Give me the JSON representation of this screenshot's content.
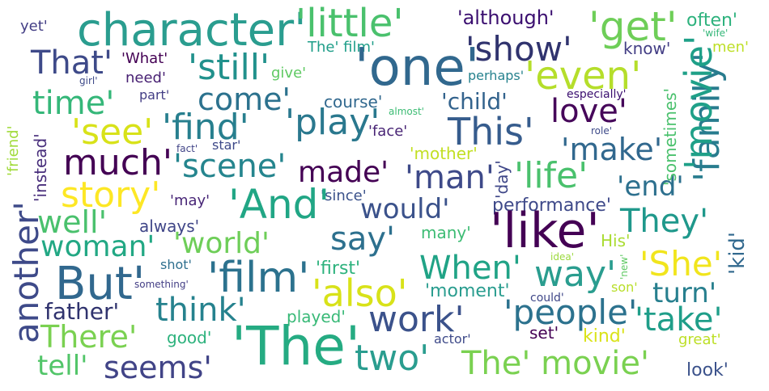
{
  "words": [
    {
      "text": "character'",
      "color": "#2a9d8f"
    },
    {
      "text": "'little'",
      "color": "#4ac16d"
    },
    {
      "text": "'although'",
      "color": "#3b0f70"
    },
    {
      "text": "'get'",
      "color": "#6ece58"
    },
    {
      "text": "often'",
      "color": "#2db27d"
    },
    {
      "text": "yet'",
      "color": "#433e85"
    },
    {
      "text": "The' film'",
      "color": "#1f9e89"
    },
    {
      "text": "'wife'",
      "color": "#35b779"
    },
    {
      "text": "That'",
      "color": "#3e4a89"
    },
    {
      "text": "'What'",
      "color": "#440154"
    },
    {
      "text": "'still'",
      "color": "#21918c"
    },
    {
      "text": "'one'",
      "color": "#31688e"
    },
    {
      "text": "'show'",
      "color": "#30336e"
    },
    {
      "text": "know'",
      "color": "#433e85"
    },
    {
      "text": "men'",
      "color": "#bddf26"
    },
    {
      "text": "need'",
      "color": "#482173"
    },
    {
      "text": "give'",
      "color": "#5ec962"
    },
    {
      "text": "perhaps'",
      "color": "#26828e"
    },
    {
      "text": "'even'",
      "color": "#b5de2b"
    },
    {
      "text": "girl'",
      "color": "#3e4a89"
    },
    {
      "text": "time'",
      "color": "#35b779"
    },
    {
      "text": "part'",
      "color": "#433e85"
    },
    {
      "text": "come'",
      "color": "#2c728e"
    },
    {
      "text": "course'",
      "color": "#31688e"
    },
    {
      "text": "'child'",
      "color": "#33638d"
    },
    {
      "text": "especially'",
      "color": "#3b0f70"
    },
    {
      "text": "almost'",
      "color": "#3dbc74"
    },
    {
      "text": "love'",
      "color": "#46075a"
    },
    {
      "text": "'family'",
      "color": "#287c8e"
    },
    {
      "text": "'movie'",
      "color": "#1fa088"
    },
    {
      "text": "'see'",
      "color": "#d8e219"
    },
    {
      "text": "'find'",
      "color": "#277f8e"
    },
    {
      "text": "'play'",
      "color": "#2a788e"
    },
    {
      "text": "'face'",
      "color": "#482475"
    },
    {
      "text": "This'",
      "color": "#365c8d"
    },
    {
      "text": "role'",
      "color": "#3e4a89"
    },
    {
      "text": "'make'",
      "color": "#31688e"
    },
    {
      "text": "'friend'",
      "color": "#a0da39"
    },
    {
      "text": "'instead'",
      "color": "#472d7b"
    },
    {
      "text": "fact'",
      "color": "#414487"
    },
    {
      "text": "star'",
      "color": "#3e4989"
    },
    {
      "text": "much'",
      "color": "#440154"
    },
    {
      "text": "'scene'",
      "color": "#25858e"
    },
    {
      "text": "'mother'",
      "color": "#c2df23"
    },
    {
      "text": "'sometimes'",
      "color": "#4ac16d"
    },
    {
      "text": "made'",
      "color": "#440154"
    },
    {
      "text": "'man'",
      "color": "#3e4a89"
    },
    {
      "text": "'life'",
      "color": "#4ac16d"
    },
    {
      "text": "'day'",
      "color": "#3f4788"
    },
    {
      "text": "'end'",
      "color": "#2d708e"
    },
    {
      "text": "story'",
      "color": "#fde725"
    },
    {
      "text": "'since'",
      "color": "#3b528b"
    },
    {
      "text": "'may'",
      "color": "#482677"
    },
    {
      "text": "'And'",
      "color": "#21a685"
    },
    {
      "text": "would'",
      "color": "#3b528b"
    },
    {
      "text": "performance'",
      "color": "#3e4989"
    },
    {
      "text": "another'",
      "color": "#3e4a89"
    },
    {
      "text": "well'",
      "color": "#4ac16d"
    },
    {
      "text": "always'",
      "color": "#404688"
    },
    {
      "text": "'like'",
      "color": "#440154"
    },
    {
      "text": "They'",
      "color": "#1f988b"
    },
    {
      "text": "'kid'",
      "color": "#31688e"
    },
    {
      "text": "woman'",
      "color": "#22a884"
    },
    {
      "text": "'world'",
      "color": "#6ece58"
    },
    {
      "text": "say'",
      "color": "#2d708e"
    },
    {
      "text": "many'",
      "color": "#3dbc74"
    },
    {
      "text": "His'",
      "color": "#aadc32"
    },
    {
      "text": "idea'",
      "color": "#9bd93c"
    },
    {
      "text": "'new'",
      "color": "#5ec962"
    },
    {
      "text": "'She'",
      "color": "#f1e51d"
    },
    {
      "text": "shot'",
      "color": "#2e6f8e"
    },
    {
      "text": "'first'",
      "color": "#2db27d"
    },
    {
      "text": "But'",
      "color": "#31688e"
    },
    {
      "text": "'film'",
      "color": "#2c728e"
    },
    {
      "text": "When'",
      "color": "#20a386"
    },
    {
      "text": "way'",
      "color": "#2a9d8f"
    },
    {
      "text": "something'",
      "color": "#433e85"
    },
    {
      "text": "'also'",
      "color": "#d8e219"
    },
    {
      "text": "'moment'",
      "color": "#2a9d8f"
    },
    {
      "text": "son'",
      "color": "#b8de29"
    },
    {
      "text": "could'",
      "color": "#3f4788"
    },
    {
      "text": "turn'",
      "color": "#277f8e"
    },
    {
      "text": "father'",
      "color": "#30336e"
    },
    {
      "text": "think'",
      "color": "#26828e"
    },
    {
      "text": "'people'",
      "color": "#2c728e"
    },
    {
      "text": "played'",
      "color": "#38b977"
    },
    {
      "text": "work'",
      "color": "#3b528b"
    },
    {
      "text": "'take'",
      "color": "#1f9e89"
    },
    {
      "text": "There'",
      "color": "#7ad151"
    },
    {
      "text": "good'",
      "color": "#2db27d"
    },
    {
      "text": "'The'",
      "color": "#25ab82"
    },
    {
      "text": "actor'",
      "color": "#3e4a89"
    },
    {
      "text": "set'",
      "color": "#440154"
    },
    {
      "text": "kind'",
      "color": "#dae319"
    },
    {
      "text": "great'",
      "color": "#bddf26"
    },
    {
      "text": "tell'",
      "color": "#52c569"
    },
    {
      "text": "seems'",
      "color": "#414487"
    },
    {
      "text": "two'",
      "color": "#2a9d8f"
    },
    {
      "text": "The' movie'",
      "color": "#7ad151"
    },
    {
      "text": "look'",
      "color": "#3b528b"
    }
  ]
}
